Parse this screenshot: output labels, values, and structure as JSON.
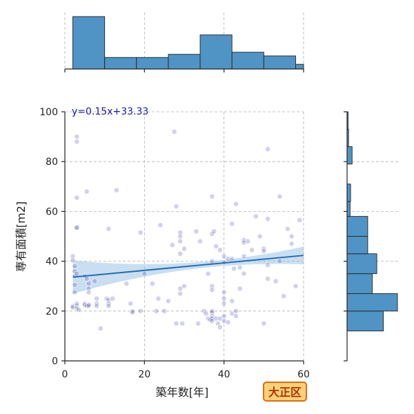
{
  "chart_data": {
    "type": "scatter",
    "xlabel": "築年数[年]",
    "ylabel": "専有面積[m2]",
    "xlim": [
      0,
      60
    ],
    "ylim": [
      0,
      100
    ],
    "xticks": [
      0,
      20,
      40,
      60
    ],
    "yticks": [
      0,
      20,
      40,
      60,
      80,
      100
    ],
    "grid": true,
    "annotation": "y=0.15x+33.33",
    "badge": "大正区",
    "point_color": "#2020a0",
    "hist_color": "#4f94c5",
    "regression": {
      "slope": 0.15,
      "intercept": 33.33,
      "x_range": [
        2,
        60
      ],
      "color": "#1f6fb4"
    },
    "points": [
      [
        2,
        42
      ],
      [
        2,
        40.5
      ],
      [
        2.5,
        38
      ],
      [
        2.5,
        36
      ],
      [
        2.5,
        34
      ],
      [
        3,
        35
      ],
      [
        2.5,
        30.5
      ],
      [
        2,
        22
      ],
      [
        2,
        21.5
      ],
      [
        3,
        22
      ],
      [
        3,
        21
      ],
      [
        3.5,
        20.5
      ],
      [
        3,
        23
      ],
      [
        2.5,
        27.5
      ],
      [
        3,
        90
      ],
      [
        3,
        88
      ],
      [
        3,
        65.5
      ],
      [
        3,
        53.5
      ],
      [
        3,
        53.5
      ],
      [
        5,
        23
      ],
      [
        5,
        22.5
      ],
      [
        5.5,
        22
      ],
      [
        6,
        22
      ],
      [
        6,
        22.5
      ],
      [
        5,
        34
      ],
      [
        5.5,
        33
      ],
      [
        6,
        31
      ],
      [
        6,
        29
      ],
      [
        6,
        27.5
      ],
      [
        5.5,
        68
      ],
      [
        7.5,
        32
      ],
      [
        8,
        25
      ],
      [
        8,
        23
      ],
      [
        8,
        22
      ],
      [
        9,
        13
      ],
      [
        10.5,
        25
      ],
      [
        11,
        24.5
      ],
      [
        11,
        23
      ],
      [
        11,
        22
      ],
      [
        11,
        53
      ],
      [
        12,
        25
      ],
      [
        13,
        68.5
      ],
      [
        15.5,
        31
      ],
      [
        16.5,
        23
      ],
      [
        17,
        20
      ],
      [
        17,
        19.5
      ],
      [
        19,
        20
      ],
      [
        19,
        51.5
      ],
      [
        20,
        35
      ],
      [
        22,
        31
      ],
      [
        23,
        20
      ],
      [
        23.5,
        25
      ],
      [
        24,
        54.5
      ],
      [
        25,
        20
      ],
      [
        26,
        24
      ],
      [
        27,
        46.5
      ],
      [
        27.5,
        92
      ],
      [
        28,
        62
      ],
      [
        28,
        15
      ],
      [
        29,
        51.5
      ],
      [
        29,
        50
      ],
      [
        29,
        48
      ],
      [
        29,
        43
      ],
      [
        29,
        29
      ],
      [
        29,
        27
      ],
      [
        29.5,
        15
      ],
      [
        30,
        45
      ],
      [
        30,
        30
      ],
      [
        33,
        52
      ],
      [
        33.5,
        15
      ],
      [
        34,
        48
      ],
      [
        35,
        20
      ],
      [
        35.5,
        19
      ],
      [
        36,
        35
      ],
      [
        36,
        17
      ],
      [
        36.5,
        16.5
      ],
      [
        37,
        66
      ],
      [
        37,
        51
      ],
      [
        37,
        40
      ],
      [
        37,
        30
      ],
      [
        37,
        28.5
      ],
      [
        37,
        20
      ],
      [
        37,
        19.5
      ],
      [
        37,
        18
      ],
      [
        37,
        17
      ],
      [
        37,
        16
      ],
      [
        37.5,
        52
      ],
      [
        38,
        46
      ],
      [
        38,
        17
      ],
      [
        38.5,
        15
      ],
      [
        39,
        13.5
      ],
      [
        39,
        17
      ],
      [
        39,
        44.5
      ],
      [
        40,
        42
      ],
      [
        40,
        39.5
      ],
      [
        40,
        27.5
      ],
      [
        40,
        25
      ],
      [
        40,
        23
      ],
      [
        40,
        18
      ],
      [
        40,
        16
      ],
      [
        41,
        41
      ],
      [
        41,
        15.5
      ],
      [
        42,
        55
      ],
      [
        42,
        41
      ],
      [
        42,
        24
      ],
      [
        42,
        19
      ],
      [
        42.5,
        37
      ],
      [
        43,
        63
      ],
      [
        43,
        20
      ],
      [
        43,
        18
      ],
      [
        44,
        29
      ],
      [
        44,
        37.5
      ],
      [
        45,
        48.5
      ],
      [
        45,
        47.5
      ],
      [
        45,
        42
      ],
      [
        45,
        35
      ],
      [
        46,
        48
      ],
      [
        47,
        44.5
      ],
      [
        48,
        58
      ],
      [
        49,
        50
      ],
      [
        50,
        45
      ],
      [
        50,
        44
      ],
      [
        50,
        15
      ],
      [
        51,
        85
      ],
      [
        51,
        57
      ],
      [
        51,
        38.5
      ],
      [
        51,
        33
      ],
      [
        53,
        32
      ],
      [
        54,
        40
      ],
      [
        54,
        66
      ],
      [
        55,
        26
      ],
      [
        56,
        53
      ],
      [
        57,
        50
      ],
      [
        57,
        47
      ],
      [
        58,
        30
      ],
      [
        59,
        56.5
      ]
    ],
    "x_hist": {
      "bins": [
        [
          2,
          10
        ],
        [
          10,
          18
        ],
        [
          18,
          26
        ],
        [
          26,
          34
        ],
        [
          34,
          42
        ],
        [
          42,
          50
        ],
        [
          50,
          58
        ],
        [
          58,
          62
        ]
      ],
      "heights": [
        1.0,
        0.22,
        0.22,
        0.28,
        0.65,
        0.32,
        0.25,
        0.09
      ]
    },
    "y_hist": {
      "bins": [
        [
          12,
          20
        ],
        [
          20,
          27
        ],
        [
          27,
          35
        ],
        [
          35,
          43
        ],
        [
          43,
          50
        ],
        [
          50,
          58
        ],
        [
          58,
          64
        ],
        [
          64,
          71
        ],
        [
          71,
          79
        ],
        [
          79,
          86
        ],
        [
          86,
          93
        ],
        [
          93,
          100
        ]
      ],
      "heights": [
        0.72,
        1.0,
        0.5,
        0.59,
        0.41,
        0.41,
        0.06,
        0.07,
        0.0,
        0.1,
        0.03,
        0.02
      ]
    }
  }
}
